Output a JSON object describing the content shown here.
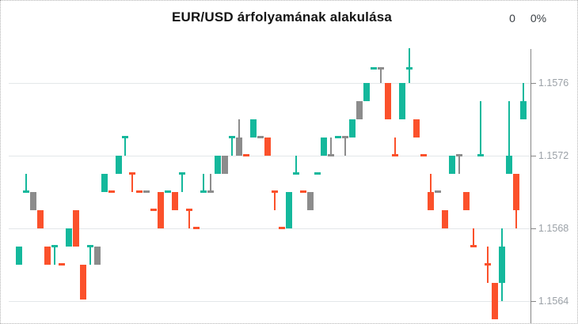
{
  "header": {
    "title": "EUR/USD árfolyamának alakulása",
    "change_value": "0",
    "change_percent": "0%"
  },
  "y_axis": {
    "labels": [
      "1.1576",
      "1.1572",
      "1.1568",
      "1.1564"
    ],
    "values": [
      1.1576,
      1.1572,
      1.1568,
      1.1564
    ]
  },
  "colors": {
    "up": "#14b89c",
    "down": "#fb512b",
    "neutral": "#8c8c8c",
    "grid": "#e3e7e9",
    "axis": "#868686",
    "axis_label": "#9ba1a7",
    "title_text": "#141414",
    "border": "#b2b2b2"
  },
  "chart_data": {
    "type": "candlestick",
    "title": "EUR/USD árfolyamának alakulása",
    "pair": "EUR/USD",
    "change": 0,
    "change_percent": 0,
    "legend": "none",
    "grid": "horizontal-only",
    "x_axis_labels": "none",
    "y_ticks": [
      1.1576,
      1.1572,
      1.1568,
      1.1564
    ],
    "ylim": [
      1.156276,
      1.1578
    ],
    "candles_note": "each candle = [open, high, low, close, direction]; direction up=teal, down=orange, neutral=gray",
    "candles": [
      [
        1.1566,
        1.1567,
        1.1566,
        1.1567,
        "up"
      ],
      [
        1.157,
        1.1571,
        1.157,
        1.157,
        "up"
      ],
      [
        1.157,
        1.157,
        1.1569,
        1.1569,
        "neutral"
      ],
      [
        1.1569,
        1.1569,
        1.1568,
        1.1568,
        "down"
      ],
      [
        1.1567,
        1.1567,
        1.1566,
        1.1566,
        "down"
      ],
      [
        1.1567,
        1.1567,
        1.1566,
        1.1567,
        "up"
      ],
      [
        1.1566,
        1.1566,
        1.1566,
        1.1566,
        "down"
      ],
      [
        1.1567,
        1.1568,
        1.1567,
        1.1568,
        "up"
      ],
      [
        1.1569,
        1.1569,
        1.1567,
        1.1567,
        "down"
      ],
      [
        1.1566,
        1.1566,
        1.15641,
        1.15641,
        "down"
      ],
      [
        1.1567,
        1.1567,
        1.1566,
        1.1567,
        "up"
      ],
      [
        1.1567,
        1.1567,
        1.1566,
        1.1566,
        "neutral"
      ],
      [
        1.157,
        1.1571,
        1.157,
        1.1571,
        "up"
      ],
      [
        1.157,
        1.157,
        1.157,
        1.157,
        "down"
      ],
      [
        1.1571,
        1.1572,
        1.1571,
        1.1572,
        "up"
      ],
      [
        1.1573,
        1.1573,
        1.1572,
        1.1573,
        "up"
      ],
      [
        1.1571,
        1.1571,
        1.157,
        1.1571,
        "down"
      ],
      [
        1.157,
        1.157,
        1.157,
        1.157,
        "down"
      ],
      [
        1.157,
        1.157,
        1.157,
        1.157,
        "neutral"
      ],
      [
        1.1569,
        1.1569,
        1.1569,
        1.1569,
        "down"
      ],
      [
        1.157,
        1.157,
        1.1568,
        1.1568,
        "down"
      ],
      [
        1.157,
        1.157,
        1.157,
        1.157,
        "up"
      ],
      [
        1.157,
        1.157,
        1.1569,
        1.1569,
        "down"
      ],
      [
        1.1571,
        1.1571,
        1.157,
        1.1571,
        "up"
      ],
      [
        1.1569,
        1.1569,
        1.1568,
        1.1569,
        "down"
      ],
      [
        1.1568,
        1.1568,
        1.1568,
        1.1568,
        "down"
      ],
      [
        1.157,
        1.1571,
        1.157,
        1.157,
        "up"
      ],
      [
        1.157,
        1.1571,
        1.157,
        1.157,
        "neutral"
      ],
      [
        1.1571,
        1.1572,
        1.1571,
        1.1572,
        "up"
      ],
      [
        1.1572,
        1.1572,
        1.1571,
        1.1571,
        "neutral"
      ],
      [
        1.1573,
        1.1573,
        1.1572,
        1.1573,
        "up"
      ],
      [
        1.1573,
        1.1574,
        1.1572,
        1.1572,
        "neutral"
      ],
      [
        1.1572,
        1.1572,
        1.1572,
        1.1572,
        "down"
      ],
      [
        1.1573,
        1.1574,
        1.1573,
        1.1574,
        "up"
      ],
      [
        1.1573,
        1.1573,
        1.1573,
        1.1573,
        "neutral"
      ],
      [
        1.1573,
        1.1573,
        1.1572,
        1.1572,
        "down"
      ],
      [
        1.157,
        1.157,
        1.1569,
        1.157,
        "down"
      ],
      [
        1.1568,
        1.1568,
        1.1568,
        1.1568,
        "down"
      ],
      [
        1.1568,
        1.157,
        1.1568,
        1.157,
        "up"
      ],
      [
        1.1571,
        1.1572,
        1.1571,
        1.1571,
        "up"
      ],
      [
        1.157,
        1.157,
        1.157,
        1.157,
        "down"
      ],
      [
        1.157,
        1.157,
        1.1569,
        1.1569,
        "neutral"
      ],
      [
        1.1571,
        1.1571,
        1.1571,
        1.1571,
        "up"
      ],
      [
        1.1572,
        1.1573,
        1.1572,
        1.1573,
        "up"
      ],
      [
        1.1572,
        1.1573,
        1.1572,
        1.1572,
        "neutral"
      ],
      [
        1.1573,
        1.1573,
        1.1573,
        1.1573,
        "up"
      ],
      [
        1.1573,
        1.1573,
        1.1572,
        1.1573,
        "neutral"
      ],
      [
        1.1573,
        1.1574,
        1.1573,
        1.1574,
        "up"
      ],
      [
        1.1575,
        1.1575,
        1.1574,
        1.1574,
        "neutral"
      ],
      [
        1.1575,
        1.1576,
        1.1575,
        1.1576,
        "up"
      ],
      [
        1.15768,
        1.15768,
        1.15768,
        1.15768,
        "up"
      ],
      [
        1.15768,
        1.15768,
        1.1576,
        1.15768,
        "neutral"
      ],
      [
        1.1576,
        1.1576,
        1.1574,
        1.1574,
        "down"
      ],
      [
        1.1572,
        1.1573,
        1.1572,
        1.1572,
        "down"
      ],
      [
        1.1574,
        1.1576,
        1.1574,
        1.1576,
        "up"
      ],
      [
        1.15768,
        1.15779,
        1.1576,
        1.15768,
        "up"
      ],
      [
        1.1574,
        1.1574,
        1.1573,
        1.1573,
        "down"
      ],
      [
        1.1572,
        1.1572,
        1.1572,
        1.1572,
        "down"
      ],
      [
        1.157,
        1.1571,
        1.1569,
        1.1569,
        "down"
      ],
      [
        1.157,
        1.157,
        1.157,
        1.157,
        "neutral"
      ],
      [
        1.1569,
        1.1569,
        1.1568,
        1.1568,
        "down"
      ],
      [
        1.1571,
        1.1572,
        1.1571,
        1.1572,
        "up"
      ],
      [
        1.1572,
        1.1572,
        1.1571,
        1.1572,
        "neutral"
      ],
      [
        1.157,
        1.157,
        1.1569,
        1.1569,
        "down"
      ],
      [
        1.1567,
        1.1568,
        1.1567,
        1.1567,
        "down"
      ],
      [
        1.1572,
        1.1575,
        1.1572,
        1.1572,
        "up"
      ],
      [
        1.1566,
        1.1567,
        1.1565,
        1.1566,
        "down"
      ],
      [
        1.1565,
        1.1565,
        1.1563,
        1.1563,
        "down"
      ],
      [
        1.1565,
        1.1568,
        1.1564,
        1.1567,
        "up"
      ],
      [
        1.1571,
        1.1575,
        1.1571,
        1.1572,
        "up"
      ],
      [
        1.1571,
        1.1571,
        1.1568,
        1.1569,
        "down"
      ],
      [
        1.1574,
        1.1576,
        1.1574,
        1.1575,
        "up"
      ]
    ]
  }
}
